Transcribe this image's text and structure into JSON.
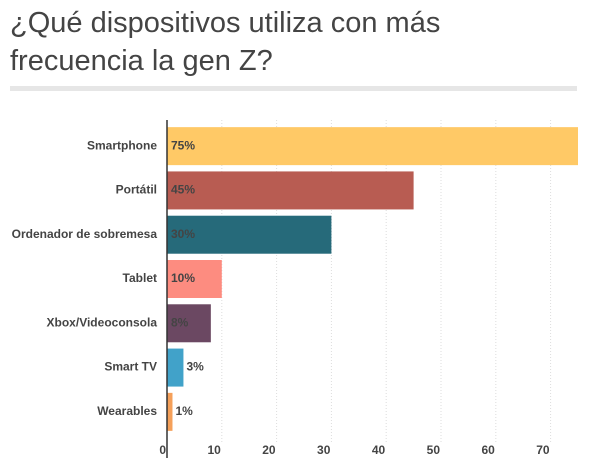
{
  "chart_data": {
    "type": "bar",
    "orientation": "horizontal",
    "title": "¿Qué dispositivos utiliza con más frecuencia la gen Z?",
    "categories": [
      "Smartphone",
      "Portátil",
      "Ordenador de sobremesa",
      "Tablet",
      "Xbox/Videoconsola",
      "Smart TV",
      "Wearables"
    ],
    "values": [
      75,
      45,
      30,
      10,
      8,
      3,
      1
    ],
    "value_labels": [
      "75%",
      "45%",
      "30%",
      "10%",
      "8%",
      "3%",
      "1%"
    ],
    "colors": [
      "#ffc966",
      "#b85c52",
      "#266a7a",
      "#fd8c80",
      "#6b4862",
      "#41a2c9",
      "#f5a05a"
    ],
    "xlim": [
      0,
      75
    ],
    "xticks": [
      0,
      10,
      20,
      30,
      40,
      50,
      60,
      70
    ]
  }
}
